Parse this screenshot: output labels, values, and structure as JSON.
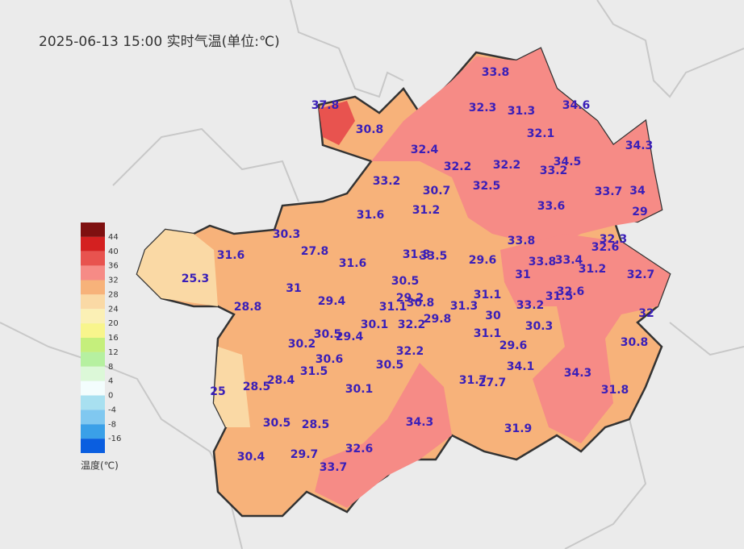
{
  "title": "2025-06-13 15:00 实时气温(单位:℃)",
  "legend": {
    "title": "温度(℃)",
    "ticks": [
      44,
      40,
      36,
      32,
      28,
      24,
      20,
      16,
      12,
      8,
      4,
      0,
      -4,
      -8,
      -16
    ],
    "colors": [
      "#7f1010",
      "#d42020",
      "#e8534f",
      "#f68b86",
      "#f7b27a",
      "#fad9a5",
      "#fbf0b5",
      "#f8f58c",
      "#c5ef7c",
      "#b6f0a0",
      "#dcf8d8",
      "#f3fdfd",
      "#a8e0f0",
      "#80c8f0",
      "#3aa0e8",
      "#0a5ee0"
    ]
  },
  "stations": [
    33.8,
    37.8,
    32.3,
    31.3,
    34.6,
    30.8,
    32.1,
    32.4,
    34.3,
    32.2,
    32.2,
    34.5,
    33.2,
    33.2,
    30.7,
    32.5,
    33.7,
    34,
    31.6,
    31.2,
    33.6,
    29,
    30.3,
    33.8,
    32.3,
    32.6,
    27.8,
    31.6,
    31.8,
    33.5,
    29.6,
    33.8,
    33.4,
    31.6,
    31.2,
    25.3,
    31,
    32.7,
    30.5,
    31,
    32.6,
    29.2,
    31.1,
    31.5,
    28.8,
    29.4,
    31.1,
    30.8,
    31.3,
    33.2,
    32,
    30,
    29.8,
    30.1,
    32.2,
    30.5,
    29.4,
    31.1,
    30.3,
    30.2,
    29.6,
    30.8,
    32.2,
    30.6,
    30.5,
    34.1,
    31.5,
    34.3,
    31.7,
    27.7,
    28.4,
    28.5,
    25,
    30.1,
    31.8,
    34.3,
    30.5,
    28.5,
    31.9,
    32.6,
    29.7,
    30.4,
    33.7
  ]
}
